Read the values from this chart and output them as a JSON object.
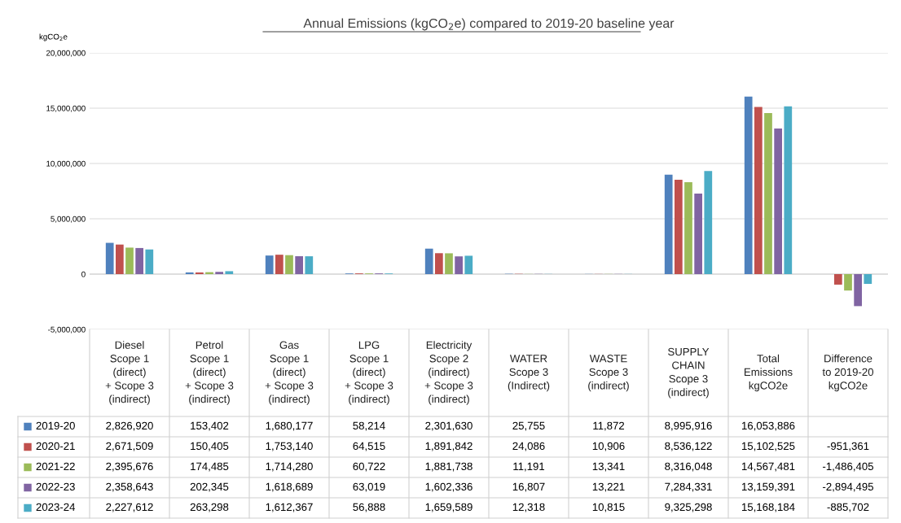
{
  "chart_data": {
    "type": "bar",
    "title": "Annual Emissions (kgCO$_{2}$e) compared to 2019-20 baseline year",
    "ylabel": "kgCO$_{2}$e",
    "categories": [
      "Diesel\nScope 1\n(direct)\n+ Scope 3\n(indirect)",
      "Petrol\nScope 1\n(direct)\n+ Scope 3\n(indirect)",
      "Gas\nScope 1\n(direct)\n+ Scope 3\n(indirect)",
      "LPG\nScope 1\n(direct)\n+ Scope 3\n(indirect)",
      "Electricity\nScope 2\n(indirect)\n+ Scope 3\n(indirect)",
      "WATER\nScope 3\n(Indirect)",
      "WASTE\nScope 3\n(indirect)",
      "SUPPLY\nCHAIN\nScope 3\n(indirect)",
      "Total\nEmissions\nkgCO2e",
      "Difference\nto 2019-20\nkgCO2e"
    ],
    "series": [
      {
        "name": "2019-20",
        "color": "#4f81bd",
        "values": [
          2826920,
          153402,
          1680177,
          58214,
          2301630,
          25755,
          11872,
          8995916,
          16053886,
          null
        ],
        "value_labels": [
          "2,826,920",
          "153,402",
          "1,680,177",
          "58,214",
          "2,301,630",
          "25,755",
          "11,872",
          "8,995,916",
          "16,053,886",
          null
        ]
      },
      {
        "name": "2020-21",
        "color": "#c0504d",
        "values": [
          2671509,
          150405,
          1753140,
          64515,
          1891842,
          24086,
          10906,
          8536122,
          15102525,
          -951361
        ],
        "value_labels": [
          "2,671,509",
          "150,405",
          "1,753,140",
          "64,515",
          "1,891,842",
          "24,086",
          "10,906",
          "8,536,122",
          "15,102,525",
          "-951,361"
        ]
      },
      {
        "name": "2021-22",
        "color": "#9bbb59",
        "values": [
          2395676,
          174485,
          1714280,
          60722,
          1881738,
          11191,
          13341,
          8316048,
          14567481,
          -1486405
        ],
        "value_labels": [
          "2,395,676",
          "174,485",
          "1,714,280",
          "60,722",
          "1,881,738",
          "11,191",
          "13,341",
          "8,316,048",
          "14,567,481",
          "-1,486,405"
        ]
      },
      {
        "name": "2022-23",
        "color": "#8064a2",
        "values": [
          2358643,
          202345,
          1618689,
          63019,
          1602336,
          16807,
          13221,
          7284331,
          13159391,
          -2894495
        ],
        "value_labels": [
          "2,358,643",
          "202,345",
          "1,618,689",
          "63,019",
          "1,602,336",
          "16,807",
          "13,221",
          "7,284,331",
          "13,159,391",
          "-2,894,495"
        ]
      },
      {
        "name": "2023-24",
        "color": "#4bacc6",
        "values": [
          2227612,
          263298,
          1612367,
          56888,
          1659589,
          12318,
          10815,
          9325298,
          15168184,
          -885702
        ],
        "value_labels": [
          "2,227,612",
          "263,298",
          "1,612,367",
          "56,888",
          "1,659,589",
          "12,318",
          "10,815",
          "9,325,298",
          "15,168,184",
          "-885,702"
        ]
      }
    ],
    "ylim": [
      -5000000,
      20000000
    ],
    "yticks": [
      {
        "value": -5000000,
        "label": "-5,000,000"
      },
      {
        "value": 0,
        "label": "0"
      },
      {
        "value": 5000000,
        "label": "5,000,000"
      },
      {
        "value": 10000000,
        "label": "10,000,000"
      },
      {
        "value": 15000000,
        "label": "15,000,000"
      },
      {
        "value": 20000000,
        "label": "20,000,000"
      }
    ],
    "grid": "y",
    "legend": "bottom left"
  }
}
